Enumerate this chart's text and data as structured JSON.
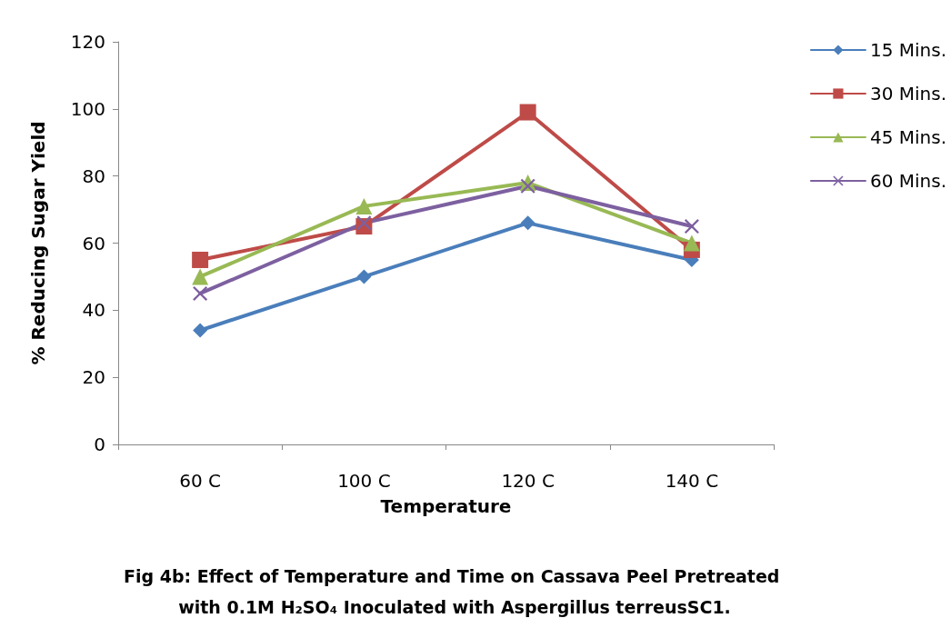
{
  "chart_data": {
    "type": "line",
    "title": "Fig 4b: Effect of Temperature and Time on Cassava Peel Pretreated with 0.1M H₂SO₄ Inoculated with Aspergillus terreusSC1.",
    "xlabel": "Temperature",
    "ylabel": "% Reducing Sugar Yield",
    "categories": [
      "60 C",
      "100 C",
      "120 C",
      "140 C"
    ],
    "series": [
      {
        "name": "15 Mins.",
        "color": "#4a7ebb",
        "marker": "diamond",
        "values": [
          34,
          50,
          66,
          55
        ]
      },
      {
        "name": "30 Mins.",
        "color": "#be4b48",
        "marker": "square",
        "values": [
          55,
          65,
          99,
          58
        ]
      },
      {
        "name": "45 Mins.",
        "color": "#98b954",
        "marker": "triangle",
        "values": [
          50,
          71,
          78,
          60
        ]
      },
      {
        "name": "60 Mins.",
        "color": "#7d60a0",
        "marker": "cross",
        "values": [
          45,
          66,
          77,
          65
        ]
      }
    ],
    "ylim": [
      0,
      120
    ],
    "yticks": [
      0,
      20,
      40,
      60,
      80,
      100,
      120
    ],
    "grid": false,
    "legend": "right",
    "line_style": "solid"
  }
}
